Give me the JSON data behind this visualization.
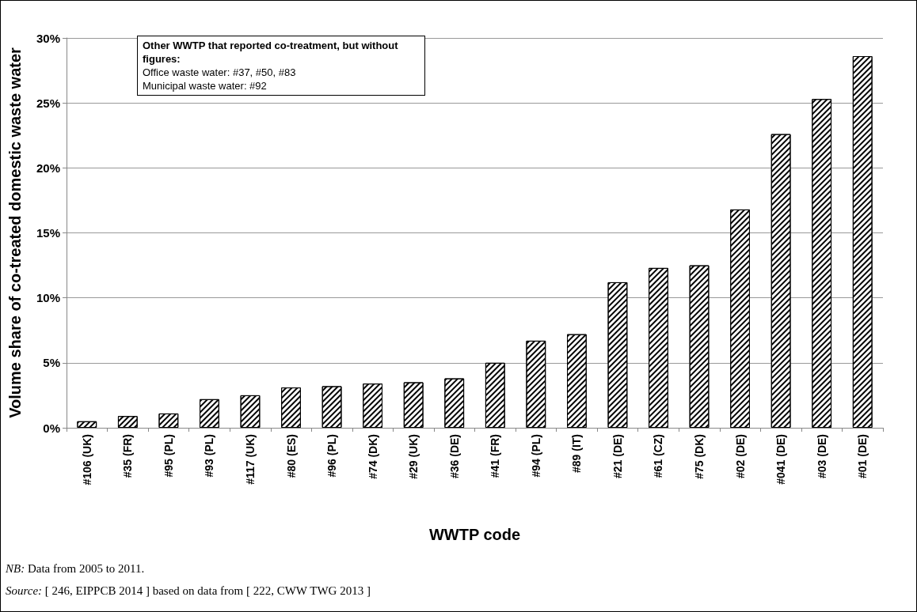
{
  "chart_data": {
    "type": "bar",
    "xlabel": "WWTP code",
    "ylabel": "Volume share of co-treated domestic waste water",
    "categories": [
      "#106 (UK)",
      "#35 (FR)",
      "#95 (PL)",
      "#93 (PL)",
      "#117 (UK)",
      "#80 (ES)",
      "#96 (PL)",
      "#74 (DK)",
      "#29 (UK)",
      "#36 (DE)",
      "#41 (FR)",
      "#94 (PL)",
      "#89 (IT)",
      "#21 (DE)",
      "#61 (CZ)",
      "#75 (DK)",
      "#02 (DE)",
      "#041 (DE)",
      "#03 (DE)",
      "#01 (DE)"
    ],
    "values": [
      0.5,
      0.9,
      1.1,
      2.2,
      2.5,
      3.1,
      3.2,
      3.4,
      3.5,
      3.8,
      5.0,
      6.7,
      7.2,
      11.2,
      12.3,
      12.5,
      16.8,
      22.6,
      25.3,
      28.6
    ],
    "color": "#000000",
    "ylim": [
      0,
      30
    ],
    "yticks": [
      {
        "value": 0,
        "label": "0%"
      },
      {
        "value": 5,
        "label": "5%"
      },
      {
        "value": 10,
        "label": "10%"
      },
      {
        "value": 15,
        "label": "15%"
      },
      {
        "value": 20,
        "label": "20%"
      },
      {
        "value": 25,
        "label": "25%"
      },
      {
        "value": 30,
        "label": "30%"
      }
    ],
    "grid": "y",
    "annotations": [
      "Other WWTP that reported co-treatment, but without figures:\nOffice waste water: #37, #50, #83\nMunicipal waste water: #92",
      "NB: Data from 2005 to 2011.",
      "Source: [ 246, EIPPCB 2014 ] based on data from [ 222, CWW TWG 2013 ]"
    ]
  }
}
